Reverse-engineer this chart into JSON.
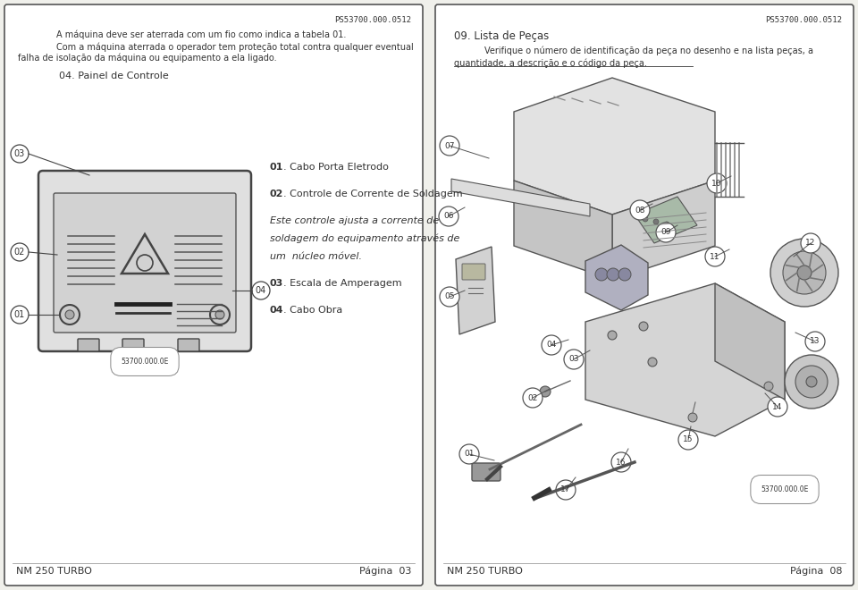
{
  "bg_color": "#f0f0eb",
  "border_color": "#555555",
  "text_color": "#333333",
  "page_code": "PS53700.000.0512",
  "footer_model": "NM 250 TURBO",
  "left_page_num": "Página  03",
  "right_page_num": "Página  08",
  "left_header_line1": "A máquina deve ser aterrada com um fio como indica a tabela 01.",
  "left_header_line2": "Com a máquina aterrada o operador tem proteção total contra qualquer eventual",
  "left_header_line3": "falha de isolação da máquina ou equipamento a ela ligado.",
  "left_section_title": "04. Painel de Controle",
  "right_section_title": "09. Lista de Peças",
  "right_header_line1": "Verifique o número de identificação da peça no desenho e na lista peças, a",
  "right_header_line2": "quantidade, a descrição e o código da peça.",
  "part_number_label": "53700.000.0E"
}
